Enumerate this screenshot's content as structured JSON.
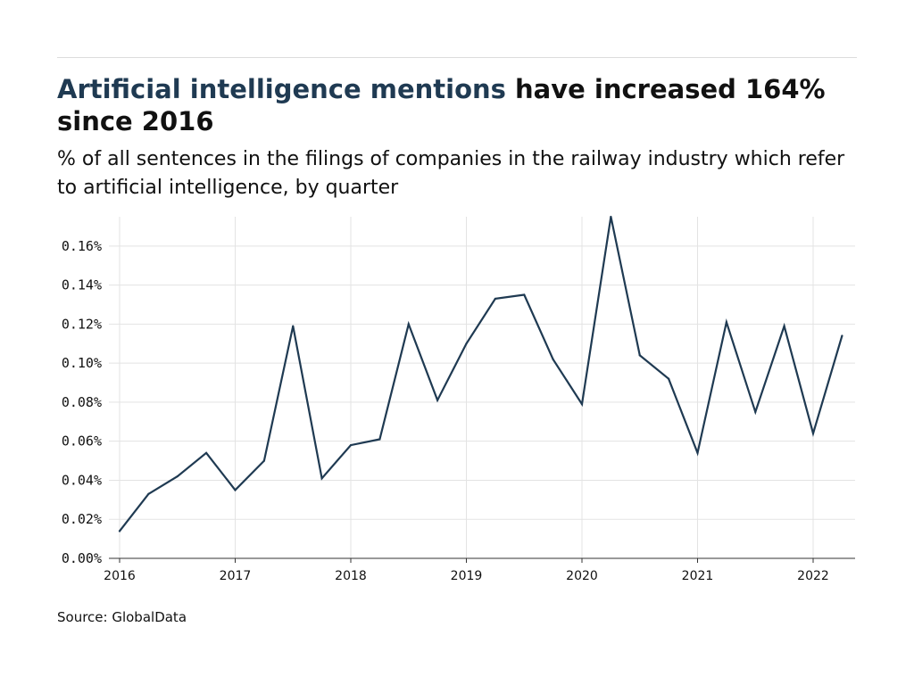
{
  "header": {
    "title_highlight": "Artificial intelligence mentions",
    "title_rest": " have increased 164% since 2016",
    "subtitle": "% of all sentences in the filings of companies in the railway industry which refer to artificial intelligence, by quarter"
  },
  "footer": {
    "source": "Source: GlobalData"
  },
  "colors": {
    "line": "#1f3a52",
    "title_highlight": "#1f3a52",
    "grid": "#e3e3e3",
    "axis": "#333333"
  },
  "chart_data": {
    "type": "line",
    "title": "Artificial intelligence mentions have increased 164% since 2016",
    "subtitle": "% of all sentences in the filings of companies in the railway industry which refer to artificial intelligence, by quarter",
    "xlabel": "",
    "ylabel": "",
    "x": [
      "2016 Q1",
      "2016 Q2",
      "2016 Q3",
      "2016 Q4",
      "2017 Q1",
      "2017 Q2",
      "2017 Q3",
      "2017 Q4",
      "2018 Q1",
      "2018 Q2",
      "2018 Q3",
      "2018 Q4",
      "2019 Q1",
      "2019 Q2",
      "2019 Q3",
      "2019 Q4",
      "2020 Q1",
      "2020 Q2",
      "2020 Q3",
      "2020 Q4",
      "2021 Q1",
      "2021 Q2",
      "2021 Q3",
      "2021 Q4",
      "2022 Q1",
      "2022 Q2"
    ],
    "series": [
      {
        "values": [
          0.014,
          0.033,
          0.042,
          0.054,
          0.035,
          0.05,
          0.119,
          0.041,
          0.058,
          0.061,
          0.12,
          0.081,
          0.11,
          0.133,
          0.135,
          0.102,
          0.079,
          0.175,
          0.104,
          0.092,
          0.054,
          0.121,
          0.075,
          0.119,
          0.064,
          0.114
        ]
      }
    ],
    "ylim": [
      0,
      0.175
    ],
    "yticks": [
      0,
      0.02,
      0.04,
      0.06,
      0.08,
      0.1,
      0.12,
      0.14,
      0.16
    ],
    "ytick_labels": [
      "0.00%",
      "0.02%",
      "0.04%",
      "0.06%",
      "0.08%",
      "0.10%",
      "0.12%",
      "0.14%",
      "0.16%"
    ],
    "xticks": [
      "2016",
      "2017",
      "2018",
      "2019",
      "2020",
      "2021",
      "2022"
    ],
    "grid": true,
    "legend": "none"
  }
}
